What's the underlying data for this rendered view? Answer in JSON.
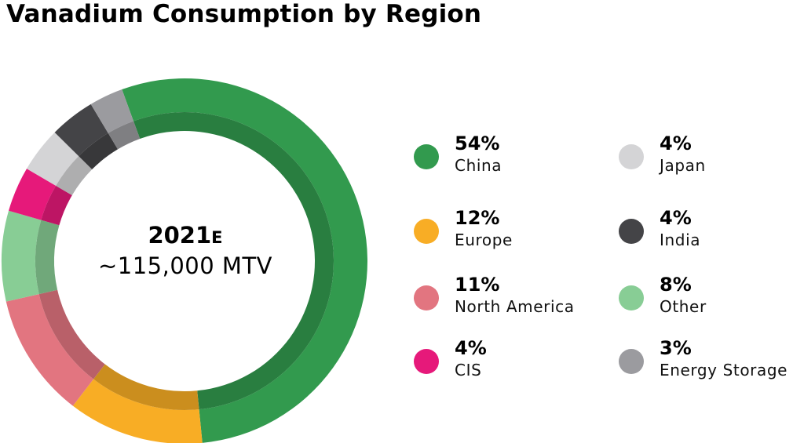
{
  "title": "Vanadium Consumption by Region",
  "center": {
    "year": "2021",
    "year_suffix": "E",
    "total": "~115,000 MTV"
  },
  "chart_data": {
    "type": "pie",
    "title": "Vanadium Consumption by Region",
    "categories": [
      "China",
      "Europe",
      "North America",
      "CIS",
      "Japan",
      "India",
      "Other",
      "Energy Storage"
    ],
    "values": [
      54,
      12,
      11,
      4,
      4,
      4,
      8,
      3
    ],
    "value_labels": [
      "54%",
      "12%",
      "11%",
      "4%",
      "4%",
      "4%",
      "8%",
      "3%"
    ],
    "colors": [
      "#329A4E",
      "#F8AD25",
      "#E27580",
      "#E6197A",
      "#D4D4D6",
      "#444447",
      "#88CD95",
      "#9B9B9F"
    ],
    "draw_order": [
      "China",
      "Europe",
      "North America",
      "Other",
      "CIS",
      "Japan",
      "India",
      "Energy Storage"
    ],
    "legend_placement": "right",
    "center_label": "2021E ~115,000 MTV"
  }
}
